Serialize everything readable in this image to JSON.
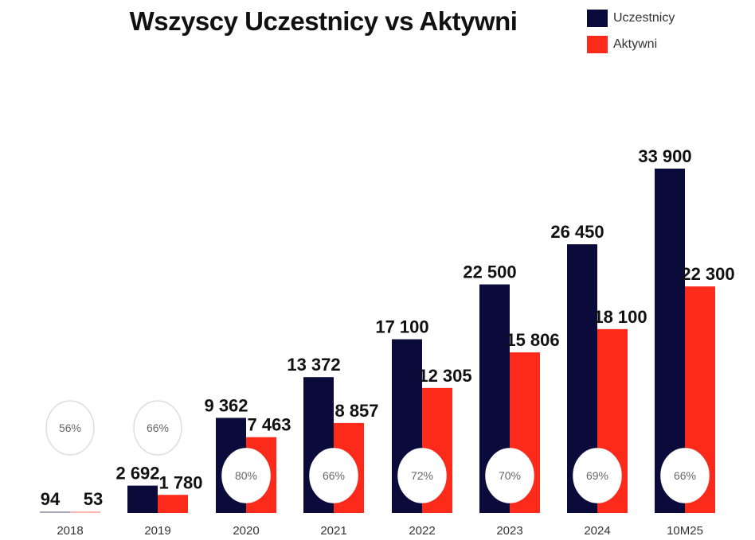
{
  "chart_data": {
    "type": "bar",
    "title": "Wszyscy Uczestnicy vs Aktywni",
    "categories": [
      "2018",
      "2019",
      "2020",
      "2021",
      "2022",
      "2023",
      "2024",
      "10M25"
    ],
    "series": [
      {
        "name": "Uczestnicy",
        "color": "#0b0b3b",
        "values": [
          94,
          2692,
          9362,
          13372,
          17100,
          22500,
          26450,
          33900
        ],
        "labels": [
          "94",
          "2 692",
          "9 362",
          "13 372",
          "17 100",
          "22 500",
          "26 450",
          "33 900"
        ]
      },
      {
        "name": "Aktywni",
        "color": "#fc2a1a",
        "values": [
          53,
          1780,
          7463,
          8857,
          12305,
          15806,
          18100,
          22300
        ],
        "labels": [
          "53",
          "1 780",
          "7 463",
          "8 857",
          "12 305",
          "15 806",
          "18 100",
          "22 300"
        ]
      }
    ],
    "ratios": [
      "56%",
      "66%",
      "80%",
      "66%",
      "72%",
      "70%",
      "69%",
      "66%"
    ],
    "xlabel": "",
    "ylabel": "",
    "ylim": [
      0,
      34000
    ],
    "grid": false,
    "legend": "top-right"
  }
}
